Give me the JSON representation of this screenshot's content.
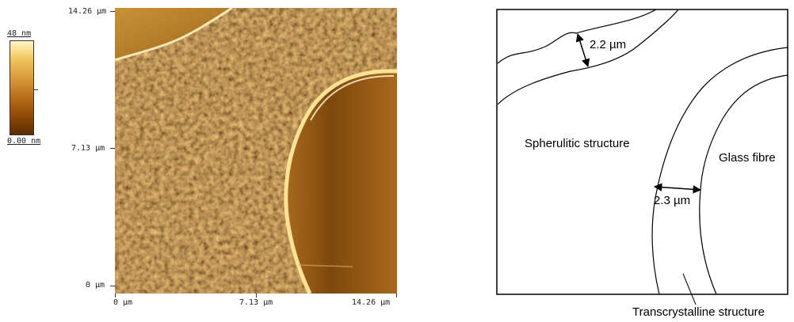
{
  "afm": {
    "scale_top": "48 nm",
    "scale_bottom": "0.00 nm",
    "y_ticks": [
      "14.26 µm",
      "7.13 µm",
      "0 µm"
    ],
    "x_ticks": [
      "0 µm",
      "7.13 µm",
      "14.26 µm"
    ]
  },
  "schematic": {
    "label_thickness_top": "2.2 µm",
    "label_region_left": "Spherulitic structure",
    "label_region_fibre": "Glass fibre",
    "label_thickness_bottom": "2.3 µm",
    "label_transcrystalline": "Transcrystalline structure"
  }
}
